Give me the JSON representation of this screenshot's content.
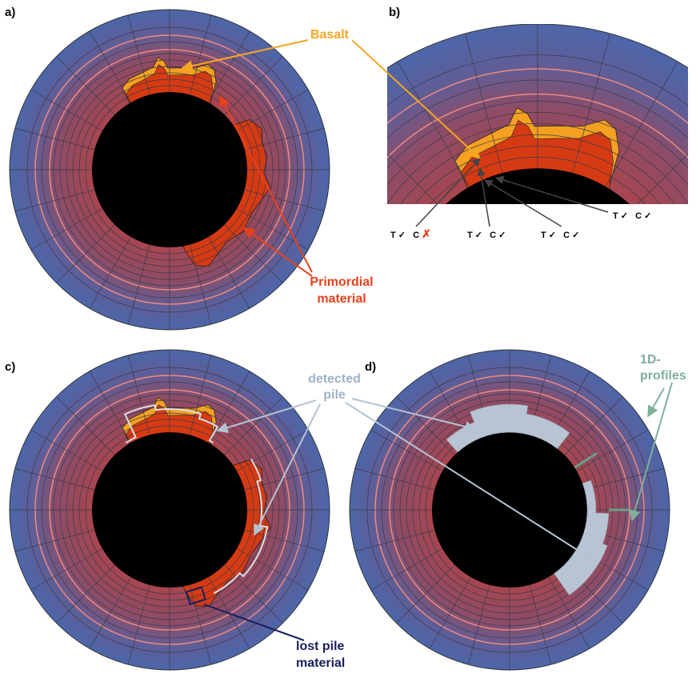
{
  "panels": {
    "a": "a)",
    "b": "b)",
    "c": "c)",
    "d": "d)"
  },
  "labels": {
    "basalt": "Basalt",
    "primordial": [
      "Primordial",
      "material"
    ],
    "detected_pile": [
      "detected",
      "pile"
    ],
    "profiles": [
      "1D-",
      "profiles"
    ],
    "lost_pile": [
      "lost pile",
      "material"
    ]
  },
  "criteria": [
    {
      "t": "T",
      "t_result": "✓",
      "c": "C",
      "c_result": "✗"
    },
    {
      "t": "T",
      "t_result": "✓",
      "c": "C",
      "c_result": "✓"
    },
    {
      "t": "T",
      "t_result": "✓",
      "c": "C",
      "c_result": "✓"
    },
    {
      "t": "T",
      "t_result": "✓",
      "c": "C",
      "c_result": "✓"
    }
  ]
}
